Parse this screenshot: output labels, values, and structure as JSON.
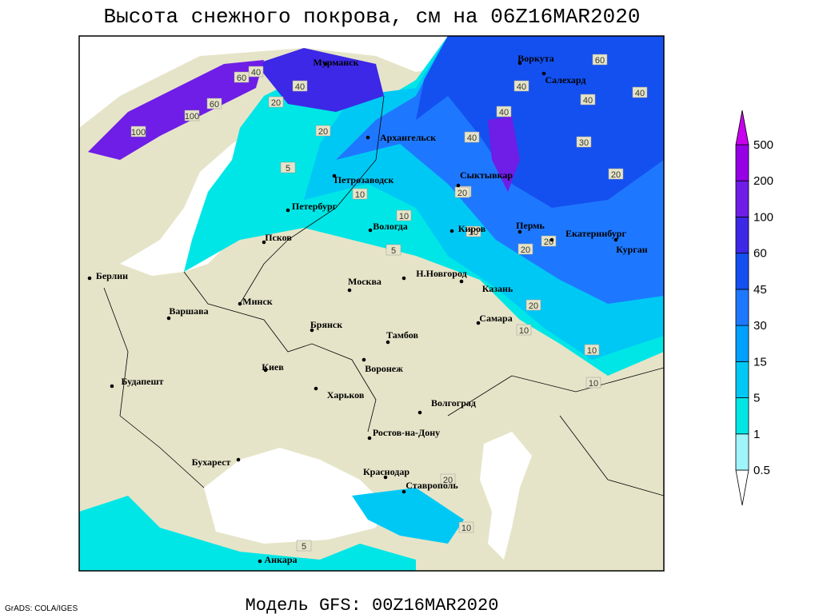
{
  "title": "Высота снежного покрова, см на 06Z16MAR2020",
  "footer": {
    "model": "Модель GFS: 00Z16MAR2020",
    "credit": "GrADS: COLA/IGES"
  },
  "cities": [
    "Мурманск",
    "Воркута",
    "Салехард",
    "Архангельск",
    "Петрозаводск",
    "Сыктывкар",
    "Петербург",
    "Вологда",
    "Киров",
    "Пермь",
    "Екатеринбург",
    "Курган",
    "Псков",
    "Берлин",
    "Н.Новгород",
    "Казань",
    "Москва",
    "Минск",
    "Варшава",
    "Самара",
    "Брянск",
    "Тамбов",
    "Киев",
    "Воронеж",
    "Харьков",
    "Будапешт",
    "Волгоград",
    "Ростов-на-Дону",
    "Бухарест",
    "Краснодар",
    "Ставрополь",
    "Анкара"
  ],
  "contour_labels": [
    40,
    60,
    100,
    60,
    100,
    20,
    40,
    20,
    5,
    20,
    40,
    40,
    60,
    40,
    40,
    30,
    20,
    20,
    10,
    10,
    5,
    20,
    20,
    20,
    10,
    10,
    10,
    40,
    20,
    5,
    10,
    10
  ],
  "legend": {
    "levels": [
      0.5,
      1,
      5,
      15,
      30,
      45,
      60,
      100,
      200,
      500
    ],
    "colors": [
      "#ffffff",
      "#a0f5fa",
      "#00e6e6",
      "#00c8f5",
      "#00a0ff",
      "#1e78ff",
      "#1450f0",
      "#3c28e6",
      "#6e1ee6",
      "#9600e6",
      "#c800f0"
    ]
  }
}
